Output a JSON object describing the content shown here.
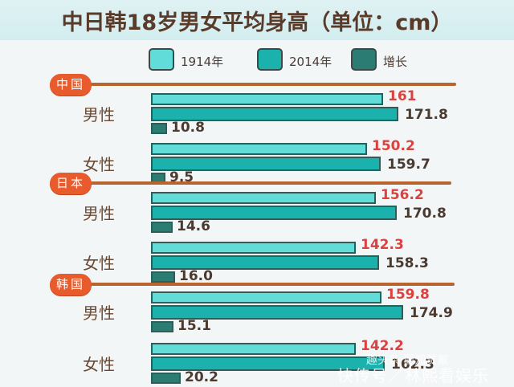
{
  "title": "中日韩18岁男女平均身高（单位：cm）",
  "legend": [
    {
      "label": "1914年",
      "color": "#62dcd9"
    },
    {
      "label": "2014年",
      "color": "#1bb1ad"
    },
    {
      "label": "增长",
      "color": "#2b7d74"
    }
  ],
  "groups": [
    {
      "country": "中国",
      "rows": [
        {
          "gender": "男性",
          "v1914": "161",
          "v2014": "171.8",
          "growth": "10.8"
        },
        {
          "gender": "女性",
          "v1914": "150.2",
          "v2014": "159.7",
          "growth": "9.5"
        }
      ]
    },
    {
      "country": "日本",
      "rows": [
        {
          "gender": "男性",
          "v1914": "156.2",
          "v2014": "170.8",
          "growth": "14.6"
        },
        {
          "gender": "女性",
          "v1914": "142.3",
          "v2014": "158.3",
          "growth": "16.0"
        }
      ]
    },
    {
      "country": "韩国",
      "rows": [
        {
          "gender": "男性",
          "v1914": "159.8",
          "v2014": "174.9",
          "growth": "15.1"
        },
        {
          "gender": "女性",
          "v1914": "142.2",
          "v2014": "162.3",
          "growth": "20.2"
        }
      ]
    }
  ],
  "watermark": {
    "line1": "趣头条 医知贫氟",
    "line2": "快传号／林熙看娱乐"
  },
  "chart_data": {
    "type": "bar",
    "title": "中日韩18岁男女平均身高（单位：cm）",
    "orientation": "horizontal",
    "categories": [
      "中国 男性",
      "中国 女性",
      "日本 男性",
      "日本 女性",
      "韩国 男性",
      "韩国 女性"
    ],
    "series": [
      {
        "name": "1914年",
        "values": [
          161,
          150.2,
          156.2,
          142.3,
          159.8,
          142.2
        ]
      },
      {
        "name": "2014年",
        "values": [
          171.8,
          159.7,
          170.8,
          158.3,
          174.9,
          162.3
        ]
      },
      {
        "name": "增长",
        "values": [
          10.8,
          9.5,
          14.6,
          16.0,
          15.1,
          20.2
        ]
      }
    ],
    "xlabel": "",
    "ylabel": "",
    "unit": "cm",
    "legend_position": "top",
    "grid": false
  }
}
